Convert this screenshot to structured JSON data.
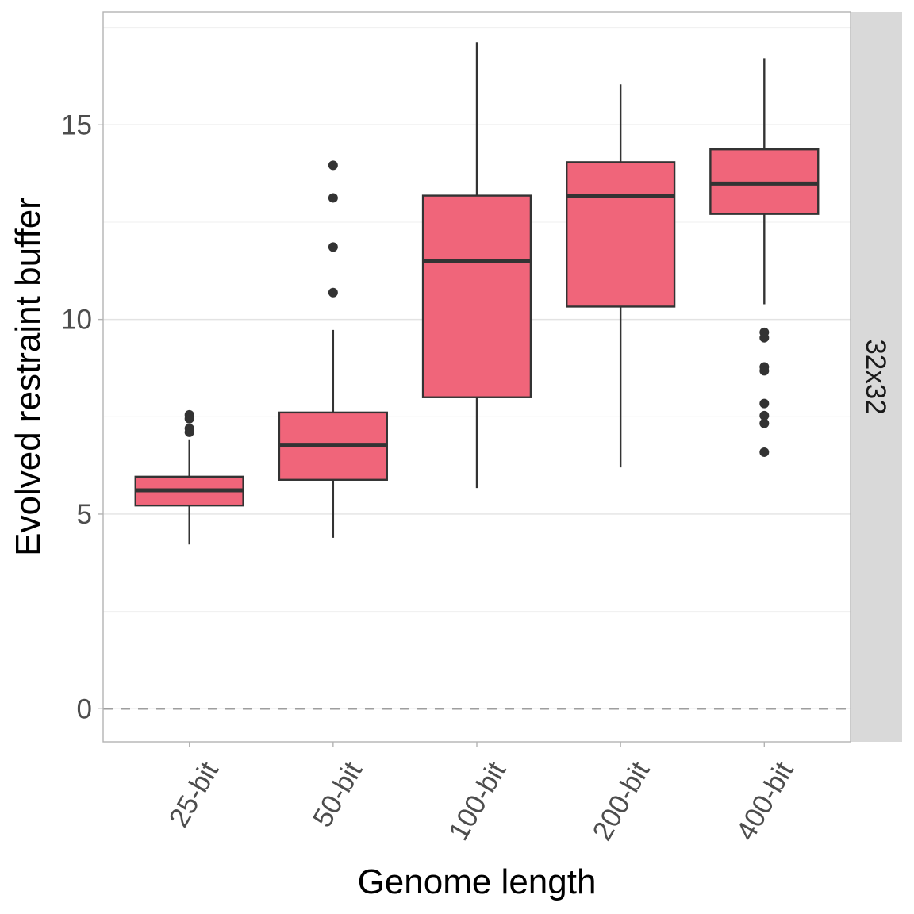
{
  "chart_data": {
    "type": "boxplot",
    "title": "",
    "xlabel": "Genome length",
    "ylabel": "Evolved restraint buffer",
    "facet_label": "32x32",
    "categories": [
      "25-bit",
      "50-bit",
      "100-bit",
      "200-bit",
      "400-bit"
    ],
    "ylim": [
      -0.85,
      17.9
    ],
    "yticks": [
      0,
      5,
      10,
      15
    ],
    "ytick_labels": [
      "0",
      "5",
      "10",
      "15"
    ],
    "grid": true,
    "reference_line": {
      "y": 0,
      "style": "dashed"
    },
    "fill_color": "#F0657A",
    "line_color": "#333333",
    "strip_color": "#D9D9D9",
    "boxes": [
      {
        "category": "25-bit",
        "whisker_low": 4.22,
        "q1": 5.22,
        "median": 5.61,
        "q3": 5.96,
        "whisker_high": 6.92,
        "outliers": [
          7.55,
          7.45,
          7.2,
          7.1
        ]
      },
      {
        "category": "50-bit",
        "whisker_low": 4.39,
        "q1": 5.88,
        "median": 6.78,
        "q3": 7.61,
        "whisker_high": 9.73,
        "outliers": [
          13.96,
          13.12,
          11.86,
          10.69
        ]
      },
      {
        "category": "100-bit",
        "whisker_low": 5.67,
        "q1": 8.0,
        "median": 11.49,
        "q3": 13.18,
        "whisker_high": 17.12,
        "outliers": []
      },
      {
        "category": "200-bit",
        "whisker_low": 6.2,
        "q1": 10.33,
        "median": 13.18,
        "q3": 14.04,
        "whisker_high": 16.04,
        "outliers": []
      },
      {
        "category": "400-bit",
        "whisker_low": 10.39,
        "q1": 12.71,
        "median": 13.49,
        "q3": 14.37,
        "whisker_high": 16.71,
        "outliers": [
          9.67,
          9.53,
          8.78,
          8.68,
          7.84,
          7.53,
          7.33,
          6.59
        ]
      }
    ]
  }
}
